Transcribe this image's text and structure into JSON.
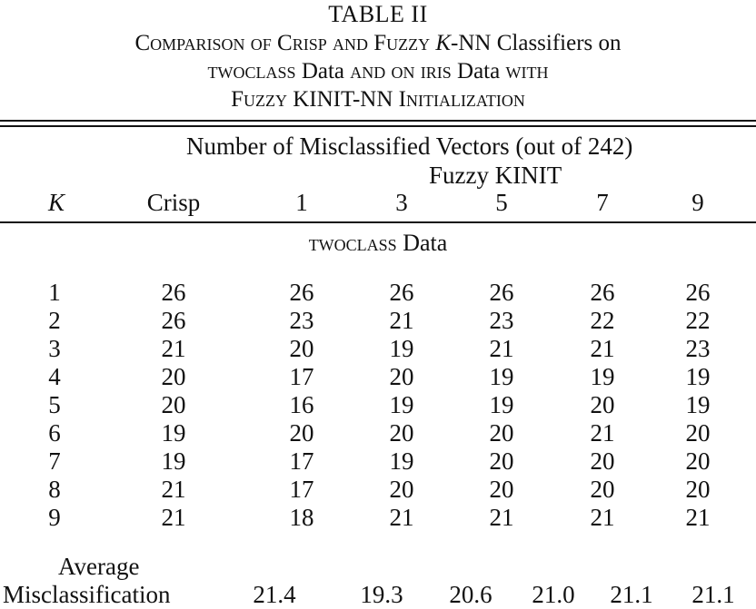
{
  "caption": {
    "table_label": "TABLE II",
    "line1_a": "Comparison of Crisp and Fuzzy ",
    "line1_k": "K",
    "line1_b": "-NN Classifiers on",
    "line2_a": "twoclass ",
    "line2_data1": "Data",
    "line2_b": " and on iris ",
    "line2_data2": "Data",
    "line2_c": " with",
    "line3_a": "Fuzzy ",
    "line3_kinit": "KINIT-NN",
    "line3_b": " Initialization"
  },
  "header": {
    "title": "Number of Misclassified Vectors (out of 242)",
    "group": "Fuzzy KINIT",
    "columns": [
      "K",
      "Crisp",
      "1",
      "3",
      "5",
      "7",
      "9"
    ]
  },
  "section": {
    "name": "twoclass",
    "suffix": " Data"
  },
  "rows": [
    [
      "1",
      "26",
      "26",
      "26",
      "26",
      "26",
      "26"
    ],
    [
      "2",
      "26",
      "23",
      "21",
      "23",
      "22",
      "22"
    ],
    [
      "3",
      "21",
      "20",
      "19",
      "21",
      "21",
      "23"
    ],
    [
      "4",
      "20",
      "17",
      "20",
      "19",
      "19",
      "19"
    ],
    [
      "5",
      "20",
      "16",
      "19",
      "19",
      "20",
      "19"
    ],
    [
      "6",
      "19",
      "20",
      "20",
      "20",
      "21",
      "20"
    ],
    [
      "7",
      "19",
      "17",
      "19",
      "20",
      "20",
      "20"
    ],
    [
      "8",
      "21",
      "17",
      "20",
      "20",
      "20",
      "20"
    ],
    [
      "9",
      "21",
      "18",
      "21",
      "21",
      "21",
      "21"
    ]
  ],
  "average": {
    "label1": "Average",
    "label2": "Misclassification",
    "values": [
      "21.4",
      "19.3",
      "20.6",
      "21.0",
      "21.1",
      "21.1"
    ]
  }
}
